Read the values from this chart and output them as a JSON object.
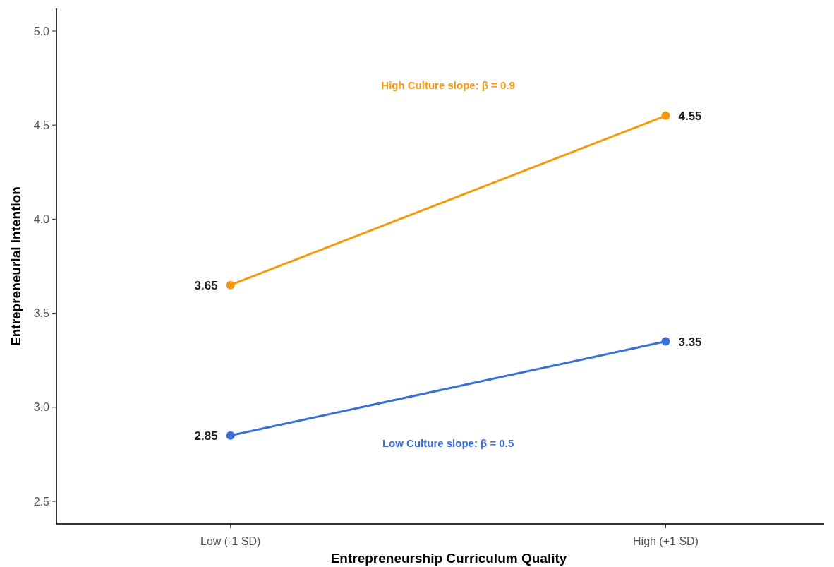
{
  "chart_data": {
    "type": "line",
    "xlabel": "Entrepreneurship Curriculum Quality",
    "ylabel": "Entrepreneurial Intention",
    "categories": [
      "Low (-1 SD)",
      "High (+1 SD)"
    ],
    "series": [
      {
        "color": "#f5990f",
        "values": [
          3.65,
          4.55
        ]
      },
      {
        "color": "#3a6fd8",
        "values": [
          2.85,
          3.35
        ]
      }
    ],
    "ylim": [
      2.38,
      5.12
    ],
    "yticks": [
      {
        "value": 2.5,
        "label": "2.5"
      },
      {
        "value": 3,
        "label": "3.0"
      },
      {
        "value": 3.5,
        "label": "3.5"
      },
      {
        "value": 4,
        "label": "4.0"
      },
      {
        "value": 4.5,
        "label": "4.5"
      },
      {
        "value": 5,
        "label": "5.0"
      }
    ],
    "marker": "circle",
    "line_style": "solid",
    "grid": false,
    "data_labels": true,
    "annotations": [
      "High Culture slope: β = 0.9",
      "Low Culture slope: β = 0.5"
    ]
  }
}
